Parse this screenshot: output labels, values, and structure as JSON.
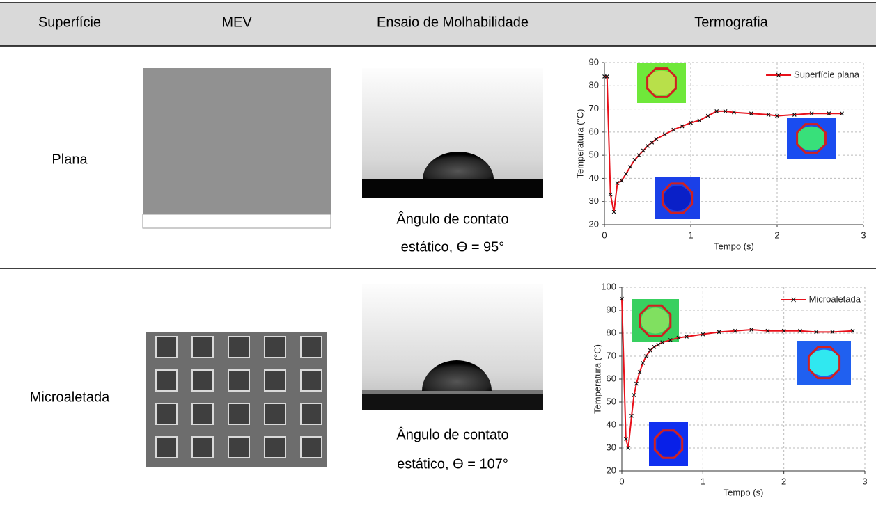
{
  "table": {
    "header": [
      "Superfície",
      "MEV",
      "Ensaio de Molhabilidade",
      "Termografia"
    ],
    "rows": [
      {
        "surface": "Plana",
        "angle": [
          "Ângulo de contato",
          "estático, ϴ = 95°"
        ]
      },
      {
        "surface": "Microaletada",
        "angle": [
          "Ângulo de contato",
          "estático, ϴ = 107°"
        ]
      }
    ]
  },
  "chart_data": [
    {
      "type": "line",
      "xlabel": "Tempo (s)",
      "ylabel": "Temperatura (°C)",
      "xlim": [
        0,
        3
      ],
      "xticks": [
        0,
        1,
        2,
        3
      ],
      "ylim": [
        20,
        90
      ],
      "yticks": [
        20,
        30,
        40,
        50,
        60,
        70,
        80,
        90
      ],
      "grid": true,
      "legend": "upper right",
      "x": [
        0,
        0.03,
        0.07,
        0.11,
        0.15,
        0.2,
        0.25,
        0.3,
        0.35,
        0.4,
        0.45,
        0.5,
        0.55,
        0.6,
        0.7,
        0.8,
        0.9,
        1.0,
        1.1,
        1.2,
        1.3,
        1.4,
        1.5,
        1.7,
        1.9,
        2.0,
        2.2,
        2.4,
        2.6,
        2.75
      ],
      "series": [
        {
          "name": "Superfície plana",
          "color": "#e8101a",
          "marker_color": "#111111",
          "values": [
            84,
            84,
            33,
            25.5,
            38,
            39,
            42,
            45,
            48,
            50,
            52,
            54,
            55.5,
            57,
            59,
            61,
            62.5,
            64,
            65,
            67,
            69,
            69,
            68.5,
            68,
            67.5,
            67,
            67.5,
            68,
            68,
            68
          ]
        }
      ]
    },
    {
      "type": "line",
      "xlabel": "Tempo (s)",
      "ylabel": "Temperatura (°C)",
      "xlim": [
        0,
        3
      ],
      "xticks": [
        0,
        1,
        2,
        3
      ],
      "ylim": [
        20,
        100
      ],
      "yticks": [
        20,
        30,
        40,
        50,
        60,
        70,
        80,
        90,
        100
      ],
      "grid": true,
      "legend": "upper right",
      "x": [
        0,
        0.05,
        0.08,
        0.12,
        0.15,
        0.18,
        0.22,
        0.26,
        0.3,
        0.35,
        0.4,
        0.45,
        0.5,
        0.6,
        0.7,
        0.8,
        1.0,
        1.2,
        1.4,
        1.6,
        1.8,
        2.0,
        2.2,
        2.4,
        2.6,
        2.85
      ],
      "series": [
        {
          "name": "Microaletada",
          "color": "#e8101a",
          "marker_color": "#111111",
          "values": [
            95,
            34,
            30,
            44,
            53,
            58,
            63,
            67,
            70,
            72.5,
            74,
            75,
            76,
            77,
            78,
            78.5,
            79.5,
            80.5,
            81,
            81.5,
            81,
            81,
            81,
            80.5,
            80.5,
            81
          ]
        }
      ]
    }
  ]
}
